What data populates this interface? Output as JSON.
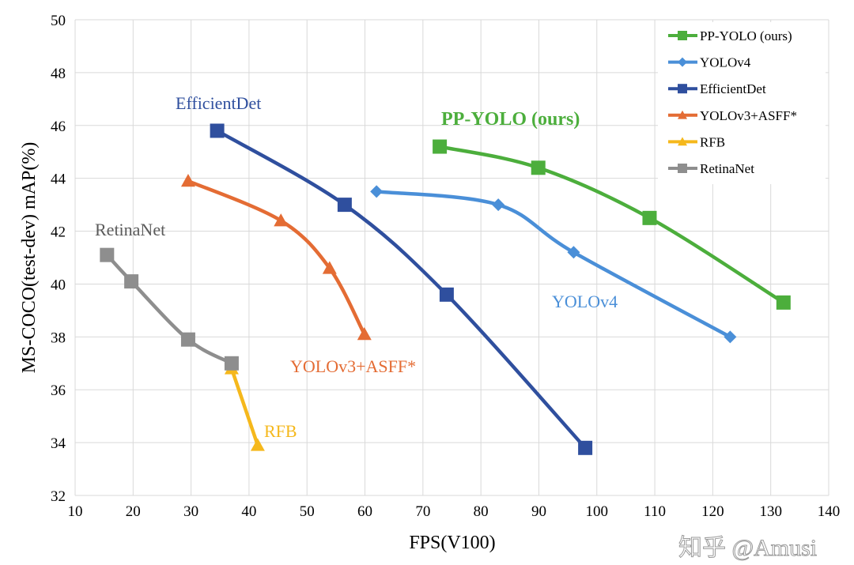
{
  "chart_data": {
    "type": "line",
    "xlabel": "FPS(V100)",
    "ylabel": "MS-COCO(test-dev) mAP(%)",
    "xlim": [
      10,
      140
    ],
    "ylim": [
      32,
      50
    ],
    "xticks": [
      10,
      20,
      30,
      40,
      50,
      60,
      70,
      80,
      90,
      100,
      110,
      120,
      130,
      140
    ],
    "yticks": [
      32,
      34,
      36,
      38,
      40,
      42,
      44,
      46,
      48,
      50
    ],
    "grid": true,
    "legend_position": "top-right",
    "series": [
      {
        "name": "PP-YOLO (ours)",
        "color": "#4cae3c",
        "marker": "square",
        "x": [
          72.9,
          89.9,
          109.1,
          132.2
        ],
        "y": [
          45.2,
          44.4,
          42.5,
          39.3
        ]
      },
      {
        "name": "YOLOv4",
        "color": "#4a8fd8",
        "marker": "diamond",
        "x": [
          62,
          83,
          96,
          123
        ],
        "y": [
          43.5,
          43.0,
          41.2,
          38.0
        ]
      },
      {
        "name": "EfficientDet",
        "color": "#2f4f9e",
        "marker": "square",
        "x": [
          34.5,
          56.5,
          74.1,
          98.0
        ],
        "y": [
          45.8,
          43.0,
          39.6,
          33.8
        ]
      },
      {
        "name": "YOLOv3+ASFF*",
        "color": "#e46c34",
        "marker": "triangle",
        "x": [
          29.5,
          45.5,
          53.9,
          59.9
        ],
        "y": [
          43.9,
          42.4,
          40.6,
          38.1
        ]
      },
      {
        "name": "RFB",
        "color": "#f5b81c",
        "marker": "triangle",
        "x": [
          37.0,
          41.5
        ],
        "y": [
          36.8,
          33.9
        ]
      },
      {
        "name": "RetinaNet",
        "color": "#8e8e8e",
        "marker": "square",
        "x": [
          15.5,
          19.7,
          29.5,
          37.0
        ],
        "y": [
          41.1,
          40.1,
          37.9,
          37.0
        ]
      }
    ],
    "annotations": [
      {
        "text": "PP-YOLO (ours)",
        "series": "PP-YOLO (ours)",
        "bold": true
      },
      {
        "text": "YOLOv4",
        "series": "YOLOv4"
      },
      {
        "text": "EfficientDet",
        "series": "EfficientDet"
      },
      {
        "text": "YOLOv3+ASFF*",
        "series": "YOLOv3+ASFF*"
      },
      {
        "text": "RFB",
        "series": "RFB"
      },
      {
        "text": "RetinaNet",
        "series": "RetinaNet"
      }
    ]
  },
  "watermark": "知乎 @Amusi"
}
